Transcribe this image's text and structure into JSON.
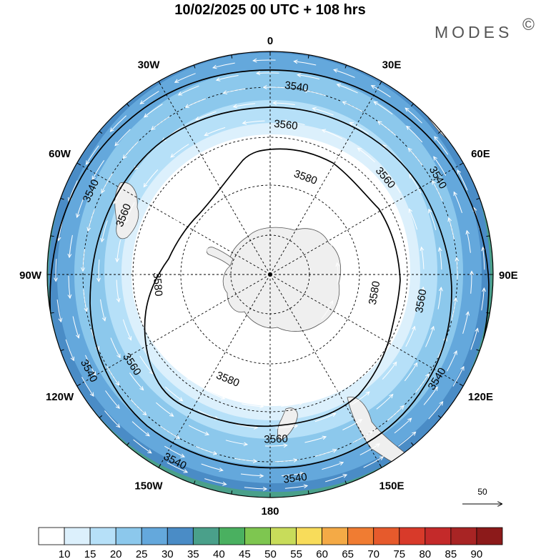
{
  "title": "10/02/2025  00 UTC  + 108 hrs",
  "brand": "MODES",
  "brand_mark": "©",
  "longitude_labels": [
    {
      "lon": 0,
      "text": "0"
    },
    {
      "lon": 30,
      "text": "30E"
    },
    {
      "lon": 60,
      "text": "60E"
    },
    {
      "lon": 90,
      "text": "90E"
    },
    {
      "lon": 120,
      "text": "120E"
    },
    {
      "lon": 150,
      "text": "150E"
    },
    {
      "lon": 180,
      "text": "180"
    },
    {
      "lon": -150,
      "text": "150W"
    },
    {
      "lon": -120,
      "text": "120W"
    },
    {
      "lon": -90,
      "text": "90W"
    },
    {
      "lon": -60,
      "text": "60W"
    },
    {
      "lon": -30,
      "text": "30W"
    }
  ],
  "contour_labels": [
    {
      "value": "3540",
      "lon": 8,
      "colat": 54
    },
    {
      "value": "3560",
      "lon": 6,
      "colat": 44
    },
    {
      "value": "3580",
      "lon": 20,
      "colat": 31
    },
    {
      "value": "3560",
      "lon": 50,
      "colat": 44
    },
    {
      "value": "3540",
      "lon": 60,
      "colat": 55
    },
    {
      "value": "3580",
      "lon": 100,
      "colat": 32
    },
    {
      "value": "3560",
      "lon": 100,
      "colat": 45
    },
    {
      "value": "3540",
      "lon": 122,
      "colat": 56
    },
    {
      "value": "3580",
      "lon": -158,
      "colat": 34
    },
    {
      "value": "3560",
      "lon": 178,
      "colat": 48
    },
    {
      "value": "3540",
      "lon": 173,
      "colat": 58
    },
    {
      "value": "3540",
      "lon": -153,
      "colat": 59
    },
    {
      "value": "3560",
      "lon": -123,
      "colat": 48
    },
    {
      "value": "3540",
      "lon": -118,
      "colat": 58
    },
    {
      "value": "3580",
      "lon": -95,
      "colat": 34
    },
    {
      "value": "3560",
      "lon": -68,
      "colat": 46
    },
    {
      "value": "3540",
      "lon": -65,
      "colat": 56
    }
  ],
  "colorbar": {
    "ticks": [
      "10",
      "15",
      "20",
      "25",
      "30",
      "35",
      "40",
      "45",
      "50",
      "55",
      "60",
      "65",
      "70",
      "75",
      "80",
      "85",
      "90"
    ],
    "colors": [
      "#ffffff",
      "#dcf0fc",
      "#b6e0f8",
      "#8cc8ec",
      "#64a8dc",
      "#4a8cc6",
      "#4aa08a",
      "#4ab060",
      "#7ec650",
      "#c8dc5a",
      "#f8dc5a",
      "#f4aa46",
      "#f07c32",
      "#e65a2c",
      "#d83a2a",
      "#c42a2a",
      "#a82424",
      "#8c1a1a"
    ]
  },
  "vector_scale": {
    "label": "50"
  }
}
